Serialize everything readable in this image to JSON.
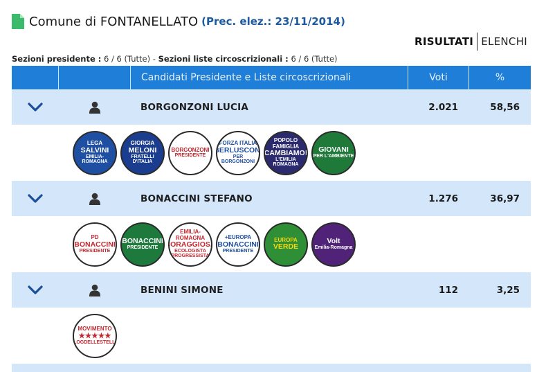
{
  "header": {
    "title": "Comune di FONTANELLATO",
    "prev_election": "(Prec. elez.: 23/11/2014)"
  },
  "view_switch": {
    "active": "RISULTATI",
    "other": "ELENCHI"
  },
  "sections": {
    "president_label": "Sezioni presidente :",
    "president_value": "6 / 6 (Tutte)",
    "separator": "-",
    "lists_label": "Sezioni liste circoscrizionali :",
    "lists_value": "6 / 6 (Tutte)"
  },
  "table": {
    "columns": [
      "",
      "",
      "Candidati Presidente e Liste circoscrizionali",
      "Voti",
      "%"
    ],
    "candidates": [
      {
        "name": "BORGONZONI LUCIA",
        "votes": "2.021",
        "pct": "58,56",
        "lists": [
          {
            "icon": "lega-salvini-logo",
            "l1": "LEGA",
            "l2": "SALVINI",
            "l3": "EMILIA-ROMAGNA",
            "bg": "#1e4fa3",
            "fg": "#ffffff"
          },
          {
            "icon": "fratelli-italia-logo",
            "l1": "GIORGIA",
            "l2": "MELONI",
            "l3": "FRATELLI D'ITALIA",
            "bg": "#1a3d8f",
            "fg": "#ffffff"
          },
          {
            "icon": "borgonzoni-presidente-logo",
            "l1": "BORGONZONI",
            "l2": "",
            "l3": "PRESIDENTE",
            "bg": "#ffffff",
            "fg": "#c8262e"
          },
          {
            "icon": "forza-italia-logo",
            "l1": "FORZA ITALIA",
            "l2": "BERLUSCONI",
            "l3": "PER BORGONZONI",
            "bg": "#ffffff",
            "fg": "#1e4fa3"
          },
          {
            "icon": "cambiamo-logo",
            "l1": "POPOLO FAMIGLIA",
            "l2": "CAMBIAMO!",
            "l3": "L'EMILIA ROMAGNA",
            "bg": "#2c2a6e",
            "fg": "#ffffff"
          },
          {
            "icon": "giovani-ambiente-logo",
            "l1": "",
            "l2": "GIOVANI",
            "l3": "PER L'AMBIENTE",
            "bg": "#1f7a3a",
            "fg": "#ffffff"
          }
        ]
      },
      {
        "name": "BONACCINI STEFANO",
        "votes": "1.276",
        "pct": "36,97",
        "lists": [
          {
            "icon": "partito-democratico-logo",
            "l1": "PD",
            "l2": "BONACCINI",
            "l3": "PRESIDENTE",
            "bg": "#ffffff",
            "fg": "#c8262e"
          },
          {
            "icon": "bonaccini-presidente-logo",
            "l1": "",
            "l2": "BONACCINI",
            "l3": "PRESIDENTE",
            "bg": "#1d7a3c",
            "fg": "#ffffff"
          },
          {
            "icon": "coraggiosa-logo",
            "l1": "EMILIA-ROMAGNA",
            "l2": "CORAGGIOSA",
            "l3": "ECOLOGISTA PROGRESSISTA",
            "bg": "#ffffff",
            "fg": "#c8262e"
          },
          {
            "icon": "europa-logo",
            "l1": "+EUROPA",
            "l2": "BONACCINI",
            "l3": "PRESIDENTE",
            "bg": "#ffffff",
            "fg": "#1e4fa3"
          },
          {
            "icon": "europa-verde-logo",
            "l1": "EUROPA",
            "l2": "VERDE",
            "l3": "",
            "bg": "#2f8f36",
            "fg": "#f5d90a"
          },
          {
            "icon": "volt-logo",
            "l1": "",
            "l2": "Volt",
            "l3": "Emilia-Romagna",
            "bg": "#502379",
            "fg": "#ffffff"
          }
        ]
      },
      {
        "name": "BENINI SIMONE",
        "votes": "112",
        "pct": "3,25",
        "lists": [
          {
            "icon": "movimento-5-stelle-logo",
            "l1": "MOVIMENTO",
            "l2": "★★★★★",
            "l3": "ILBLOGDELLESTELLE.IT",
            "bg": "#ffffff",
            "fg": "#c8262e"
          }
        ]
      }
    ]
  }
}
